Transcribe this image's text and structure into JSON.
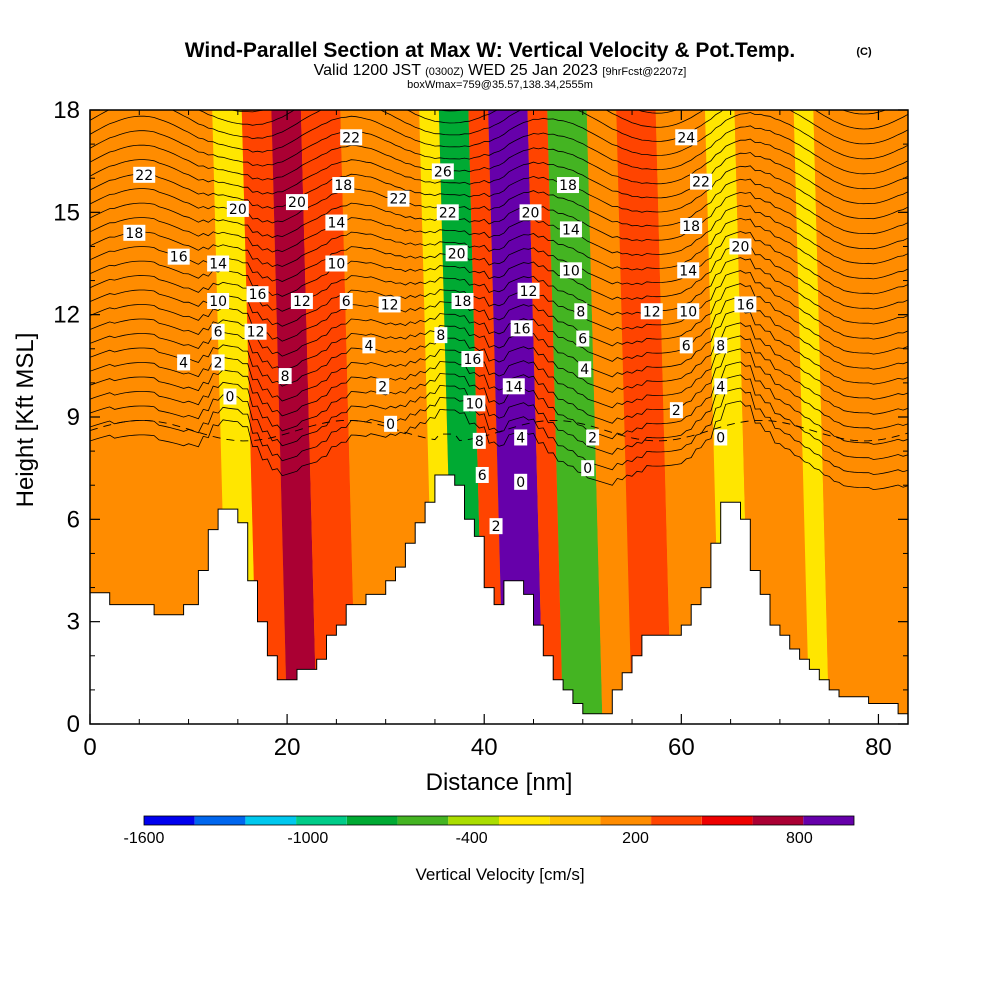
{
  "chart_data": {
    "type": "heatmap",
    "title": "Wind-Parallel Section at Max W: Vertical Velocity & Pot.Temp.",
    "title_tag": "(C)",
    "subtitle_main_a": "Valid 1200 JST ",
    "subtitle_main_b": "(0300Z)",
    "subtitle_main_c": " WED 25 Jan 2023 ",
    "subtitle_main_d": "[9hrFcst@2207z]",
    "subtitle_detail": "boxWmax=759@35.57,138.34,2555m",
    "xlabel": "Distance [nm]",
    "ylabel": "Height [Kft MSL]",
    "xlim": [
      0,
      83
    ],
    "ylim": [
      0,
      18
    ],
    "x_ticks": [
      0,
      20,
      40,
      60,
      80
    ],
    "x_tick_labels": [
      "0",
      "20",
      "40",
      "60",
      "80"
    ],
    "y_ticks": [
      0,
      3,
      6,
      9,
      12,
      15,
      18
    ],
    "y_tick_labels": [
      "0",
      "3",
      "6",
      "9",
      "12",
      "15",
      "18"
    ],
    "colorbar": {
      "title": "Vertical Velocity [cm/s]",
      "min": -1600,
      "max": 1000,
      "labeled_values": [
        -1600,
        -1000,
        -400,
        200,
        800
      ],
      "labels": [
        "-1600",
        "-1000",
        "-400",
        "200",
        "800"
      ],
      "colors": [
        "#0000ee",
        "#0066ee",
        "#00c8ee",
        "#00cc88",
        "#00aa33",
        "#44b422",
        "#aadd00",
        "#ffe600",
        "#ffc000",
        "#ff8c00",
        "#ff4400",
        "#ee0000",
        "#aa0033",
        "#6600aa"
      ]
    },
    "terrain": [
      [
        0,
        3.85
      ],
      [
        2,
        3.85
      ],
      [
        2,
        3.5
      ],
      [
        6.5,
        3.5
      ],
      [
        6.5,
        3.2
      ],
      [
        9.5,
        3.2
      ],
      [
        9.5,
        3.5
      ],
      [
        11,
        3.5
      ],
      [
        11,
        4.5
      ],
      [
        12,
        4.5
      ],
      [
        12,
        5.7
      ],
      [
        13,
        5.7
      ],
      [
        13,
        6.3
      ],
      [
        15,
        6.3
      ],
      [
        15,
        5.9
      ],
      [
        16,
        5.9
      ],
      [
        16,
        4.2
      ],
      [
        17,
        4.2
      ],
      [
        17,
        3.0
      ],
      [
        18,
        3.0
      ],
      [
        18,
        2.0
      ],
      [
        19,
        2.0
      ],
      [
        19,
        1.3
      ],
      [
        21,
        1.3
      ],
      [
        21,
        1.6
      ],
      [
        23,
        1.6
      ],
      [
        23,
        1.9
      ],
      [
        24,
        1.9
      ],
      [
        24,
        2.6
      ],
      [
        25,
        2.6
      ],
      [
        25,
        2.9
      ],
      [
        26,
        2.9
      ],
      [
        26,
        3.5
      ],
      [
        28,
        3.5
      ],
      [
        28,
        3.8
      ],
      [
        30,
        3.8
      ],
      [
        30,
        4.2
      ],
      [
        31,
        4.2
      ],
      [
        31,
        4.6
      ],
      [
        32,
        4.6
      ],
      [
        32,
        5.3
      ],
      [
        33,
        5.3
      ],
      [
        33,
        5.9
      ],
      [
        34,
        5.9
      ],
      [
        34,
        6.5
      ],
      [
        35,
        6.5
      ],
      [
        35,
        7.3
      ],
      [
        37,
        7.3
      ],
      [
        37,
        7.0
      ],
      [
        38,
        7.0
      ],
      [
        38,
        6.0
      ],
      [
        39,
        6.0
      ],
      [
        39,
        5.5
      ],
      [
        40,
        5.5
      ],
      [
        40,
        4.0
      ],
      [
        41,
        4.0
      ],
      [
        41,
        3.5
      ],
      [
        42,
        3.5
      ],
      [
        42,
        4.2
      ],
      [
        44,
        4.2
      ],
      [
        44,
        3.8
      ],
      [
        45,
        3.8
      ],
      [
        45,
        2.9
      ],
      [
        46,
        2.9
      ],
      [
        46,
        2.0
      ],
      [
        47,
        2.0
      ],
      [
        47,
        1.3
      ],
      [
        48,
        1.3
      ],
      [
        48,
        1.0
      ],
      [
        49,
        1.0
      ],
      [
        49,
        0.6
      ],
      [
        50,
        0.6
      ],
      [
        50,
        0.3
      ],
      [
        53,
        0.3
      ],
      [
        53,
        1.0
      ],
      [
        54,
        1.0
      ],
      [
        54,
        1.5
      ],
      [
        55,
        1.5
      ],
      [
        55,
        2.0
      ],
      [
        56,
        2.0
      ],
      [
        56,
        2.6
      ],
      [
        60,
        2.6
      ],
      [
        60,
        2.9
      ],
      [
        61,
        2.9
      ],
      [
        61,
        3.5
      ],
      [
        62,
        3.5
      ],
      [
        62,
        4.0
      ],
      [
        63,
        4.0
      ],
      [
        63,
        5.3
      ],
      [
        64,
        5.3
      ],
      [
        64,
        6.5
      ],
      [
        66,
        6.5
      ],
      [
        66,
        6.0
      ],
      [
        67,
        6.0
      ],
      [
        67,
        4.5
      ],
      [
        68,
        4.5
      ],
      [
        68,
        3.8
      ],
      [
        69,
        3.8
      ],
      [
        69,
        2.9
      ],
      [
        70,
        2.9
      ],
      [
        70,
        2.6
      ],
      [
        71,
        2.6
      ],
      [
        71,
        2.2
      ],
      [
        72,
        2.2
      ],
      [
        72,
        1.9
      ],
      [
        73,
        1.9
      ],
      [
        73,
        1.6
      ],
      [
        74,
        1.6
      ],
      [
        74,
        1.3
      ],
      [
        75,
        1.3
      ],
      [
        75,
        1.0
      ],
      [
        76,
        1.0
      ],
      [
        76,
        0.8
      ],
      [
        79,
        0.8
      ],
      [
        79,
        0.6
      ],
      [
        82,
        0.6
      ],
      [
        82,
        0.3
      ],
      [
        83,
        0.3
      ]
    ],
    "velocity_bands": [
      {
        "x0": 0,
        "x1": 9,
        "value": 100
      },
      {
        "x0": 9,
        "x1": 14,
        "value": 200
      },
      {
        "x0": 14,
        "x1": 17,
        "value": -300
      },
      {
        "x0": 17,
        "x1": 20,
        "value": 350
      },
      {
        "x0": 20,
        "x1": 23,
        "value": 650
      },
      {
        "x0": 23,
        "x1": 27,
        "value": 300
      },
      {
        "x0": 27,
        "x1": 35,
        "value": 100
      },
      {
        "x0": 35,
        "x1": 37,
        "value": -300
      },
      {
        "x0": 37,
        "x1": 40,
        "value": -700
      },
      {
        "x0": 40,
        "x1": 42,
        "value": 300
      },
      {
        "x0": 42,
        "x1": 46,
        "value": 950
      },
      {
        "x0": 46,
        "x1": 48,
        "value": 400
      },
      {
        "x0": 48,
        "x1": 52,
        "value": -550
      },
      {
        "x0": 52,
        "x1": 55,
        "value": 100
      },
      {
        "x0": 55,
        "x1": 59,
        "value": 400
      },
      {
        "x0": 59,
        "x1": 64,
        "value": 200
      },
      {
        "x0": 64,
        "x1": 67,
        "value": -300
      },
      {
        "x0": 67,
        "x1": 73,
        "value": 100
      },
      {
        "x0": 73,
        "x1": 75,
        "value": -200
      },
      {
        "x0": 75,
        "x1": 83,
        "value": 150
      }
    ],
    "contour_labels": [
      {
        "x": 5.5,
        "y": 16.1,
        "text": "22"
      },
      {
        "x": 4.5,
        "y": 14.4,
        "text": "18"
      },
      {
        "x": 9,
        "y": 13.7,
        "text": "16"
      },
      {
        "x": 13,
        "y": 13.5,
        "text": "14"
      },
      {
        "x": 13,
        "y": 12.4,
        "text": "10"
      },
      {
        "x": 13,
        "y": 11.5,
        "text": "6"
      },
      {
        "x": 9.5,
        "y": 10.6,
        "text": "4"
      },
      {
        "x": 13,
        "y": 10.6,
        "text": "2"
      },
      {
        "x": 14.2,
        "y": 9.6,
        "text": "0"
      },
      {
        "x": 15,
        "y": 15.1,
        "text": "20"
      },
      {
        "x": 17,
        "y": 12.6,
        "text": "16"
      },
      {
        "x": 16.8,
        "y": 11.5,
        "text": "12"
      },
      {
        "x": 19.8,
        "y": 10.2,
        "text": "8"
      },
      {
        "x": 21,
        "y": 15.3,
        "text": "20"
      },
      {
        "x": 21.5,
        "y": 12.4,
        "text": "12"
      },
      {
        "x": 26.5,
        "y": 17.2,
        "text": "22"
      },
      {
        "x": 25.7,
        "y": 15.8,
        "text": "18"
      },
      {
        "x": 25,
        "y": 14.7,
        "text": "14"
      },
      {
        "x": 25,
        "y": 13.5,
        "text": "10"
      },
      {
        "x": 26,
        "y": 12.4,
        "text": "6"
      },
      {
        "x": 28.3,
        "y": 11.1,
        "text": "4"
      },
      {
        "x": 29.7,
        "y": 9.9,
        "text": "2"
      },
      {
        "x": 30.5,
        "y": 8.8,
        "text": "0"
      },
      {
        "x": 31.3,
        "y": 15.4,
        "text": "22"
      },
      {
        "x": 30.4,
        "y": 12.3,
        "text": "12"
      },
      {
        "x": 35.8,
        "y": 16.2,
        "text": "26"
      },
      {
        "x": 36.3,
        "y": 15.0,
        "text": "22"
      },
      {
        "x": 37.2,
        "y": 13.8,
        "text": "20"
      },
      {
        "x": 37.8,
        "y": 12.4,
        "text": "18"
      },
      {
        "x": 35.6,
        "y": 11.4,
        "text": "8"
      },
      {
        "x": 38.8,
        "y": 10.7,
        "text": "16"
      },
      {
        "x": 39,
        "y": 9.4,
        "text": "10"
      },
      {
        "x": 39.5,
        "y": 8.3,
        "text": "8"
      },
      {
        "x": 39.8,
        "y": 7.3,
        "text": "6"
      },
      {
        "x": 41.2,
        "y": 5.8,
        "text": "2"
      },
      {
        "x": 44.7,
        "y": 15.0,
        "text": "20"
      },
      {
        "x": 44.5,
        "y": 12.7,
        "text": "12"
      },
      {
        "x": 43.8,
        "y": 11.6,
        "text": "16"
      },
      {
        "x": 43,
        "y": 9.9,
        "text": "14"
      },
      {
        "x": 43.7,
        "y": 8.4,
        "text": "4"
      },
      {
        "x": 43.7,
        "y": 7.1,
        "text": "0"
      },
      {
        "x": 48.5,
        "y": 15.8,
        "text": "18"
      },
      {
        "x": 48.8,
        "y": 14.5,
        "text": "14"
      },
      {
        "x": 48.8,
        "y": 13.3,
        "text": "10"
      },
      {
        "x": 49.8,
        "y": 12.1,
        "text": "8"
      },
      {
        "x": 50,
        "y": 11.3,
        "text": "6"
      },
      {
        "x": 50.2,
        "y": 10.4,
        "text": "4"
      },
      {
        "x": 51,
        "y": 8.4,
        "text": "2"
      },
      {
        "x": 50.5,
        "y": 7.5,
        "text": "0"
      },
      {
        "x": 60.5,
        "y": 17.2,
        "text": "24"
      },
      {
        "x": 62,
        "y": 15.9,
        "text": "22"
      },
      {
        "x": 61,
        "y": 14.6,
        "text": "18"
      },
      {
        "x": 66,
        "y": 14.0,
        "text": "20"
      },
      {
        "x": 60.7,
        "y": 13.3,
        "text": "14"
      },
      {
        "x": 57,
        "y": 12.1,
        "text": "12"
      },
      {
        "x": 60.7,
        "y": 12.1,
        "text": "10"
      },
      {
        "x": 66.5,
        "y": 12.3,
        "text": "16"
      },
      {
        "x": 60.5,
        "y": 11.1,
        "text": "6"
      },
      {
        "x": 64,
        "y": 11.1,
        "text": "8"
      },
      {
        "x": 64,
        "y": 9.9,
        "text": "4"
      },
      {
        "x": 59.5,
        "y": 9.2,
        "text": "2"
      },
      {
        "x": 64,
        "y": 8.4,
        "text": "0"
      }
    ]
  }
}
